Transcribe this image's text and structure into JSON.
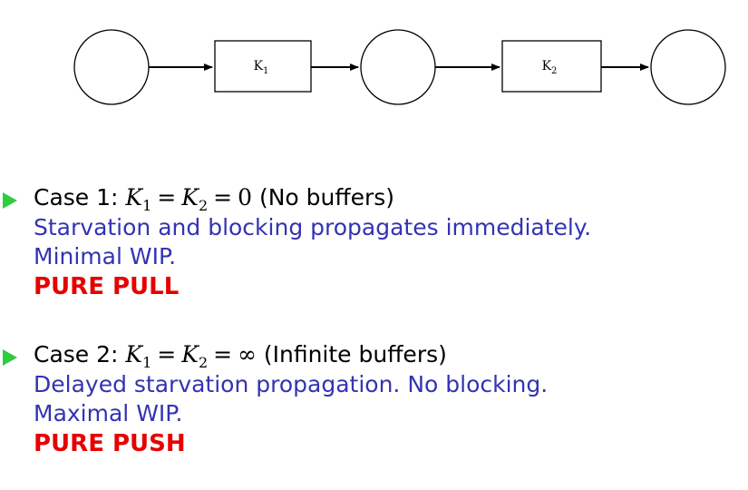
{
  "diagram": {
    "buffer_1": {
      "label": "K",
      "sub": "1"
    },
    "buffer_2": {
      "label": "K",
      "sub": "2"
    }
  },
  "cases": [
    {
      "prefix": "Case 1:",
      "symbol": "K",
      "sub_1": "1",
      "sub_2": "2",
      "eq_1": "=",
      "eq_2": "=",
      "value": "0",
      "note": "(No buffers)",
      "desc_1": "Starvation and blocking propagates immediately.",
      "desc_2": "Minimal WIP.",
      "verdict": "PURE PULL"
    },
    {
      "prefix": "Case 2:",
      "symbol": "K",
      "sub_1": "1",
      "sub_2": "2",
      "eq_1": "=",
      "eq_2": "=",
      "value": "∞",
      "note": "(Infinite buffers)",
      "desc_1": "Delayed starvation propagation. No blocking.",
      "desc_2": "Maximal WIP.",
      "verdict": "PURE PUSH"
    }
  ],
  "colors": {
    "bullet": "#2ecc40",
    "description": "#3333b3",
    "verdict": "#e60000"
  }
}
